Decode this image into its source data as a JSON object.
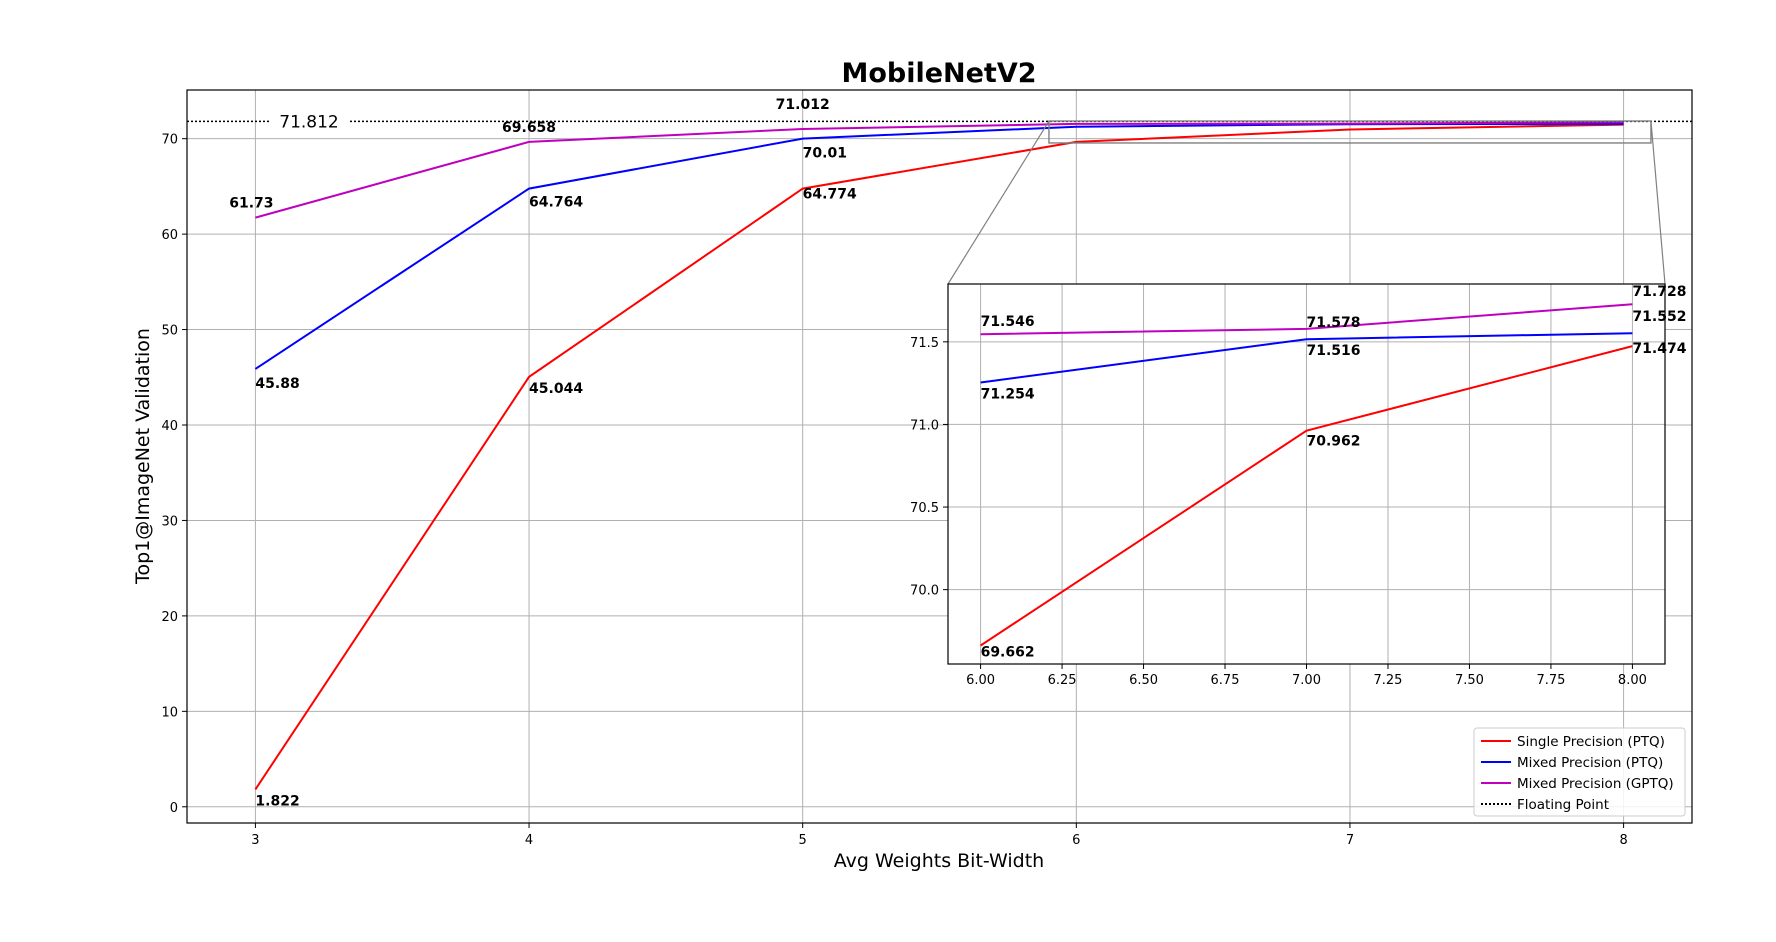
{
  "chart_data": [
    {
      "type": "line",
      "title": "MobileNetV2",
      "xlabel": "Avg Weights Bit-Width",
      "ylabel": "Top1@ImageNet Validation",
      "x": [
        3,
        4,
        5,
        6,
        7,
        8
      ],
      "xlim": [
        2.75,
        8.25
      ],
      "ylim": [
        -1.7,
        75.1
      ],
      "xticks": [
        3,
        4,
        5,
        6,
        7,
        8
      ],
      "yticks": [
        0,
        10,
        20,
        30,
        40,
        50,
        60,
        70
      ],
      "grid": true,
      "legend": "bottom-right",
      "series": [
        {
          "name": "Single Precision (PTQ)",
          "color": "#ff0000",
          "values": [
            1.822,
            45.044,
            64.774,
            69.662,
            70.962,
            71.474
          ],
          "labels": [
            "1.822",
            "45.044",
            "64.774",
            "",
            "",
            ""
          ]
        },
        {
          "name": "Mixed Precision (PTQ)",
          "color": "#0000ff",
          "values": [
            45.88,
            64.764,
            70.01,
            71.254,
            71.516,
            71.552
          ],
          "labels": [
            "45.88",
            "64.764",
            "70.01",
            "",
            "",
            ""
          ]
        },
        {
          "name": "Mixed Precision (GPTQ)",
          "color": "#bf00bf",
          "values": [
            61.73,
            69.658,
            71.012,
            71.546,
            71.578,
            71.728
          ],
          "labels": [
            "61.73",
            "69.658",
            "71.012",
            "",
            "",
            ""
          ]
        }
      ],
      "reference": {
        "name": "Floating Point",
        "value": 71.812,
        "label": "71.812",
        "style": "dotted"
      }
    },
    {
      "type": "line",
      "role": "zoom-inset",
      "x": [
        6,
        7,
        8
      ],
      "xlim": [
        5.9,
        8.1
      ],
      "ylim": [
        69.55,
        71.85
      ],
      "xticks": [
        "6.00",
        "6.25",
        "6.50",
        "6.75",
        "7.00",
        "7.25",
        "7.50",
        "7.75",
        "8.00"
      ],
      "yticks": [
        "70.0",
        "70.5",
        "71.0",
        "71.5"
      ],
      "grid": true,
      "series": [
        {
          "name": "Single Precision (PTQ)",
          "color": "#ff0000",
          "values": [
            69.662,
            70.962,
            71.474
          ],
          "labels": [
            "69.662",
            "70.962",
            "71.474"
          ]
        },
        {
          "name": "Mixed Precision (PTQ)",
          "color": "#0000ff",
          "values": [
            71.254,
            71.516,
            71.552
          ],
          "labels": [
            "71.254",
            "71.516",
            "71.552"
          ]
        },
        {
          "name": "Mixed Precision (GPTQ)",
          "color": "#bf00bf",
          "values": [
            71.546,
            71.578,
            71.728
          ],
          "labels": [
            "71.546",
            "71.578",
            "71.728"
          ]
        }
      ]
    }
  ]
}
